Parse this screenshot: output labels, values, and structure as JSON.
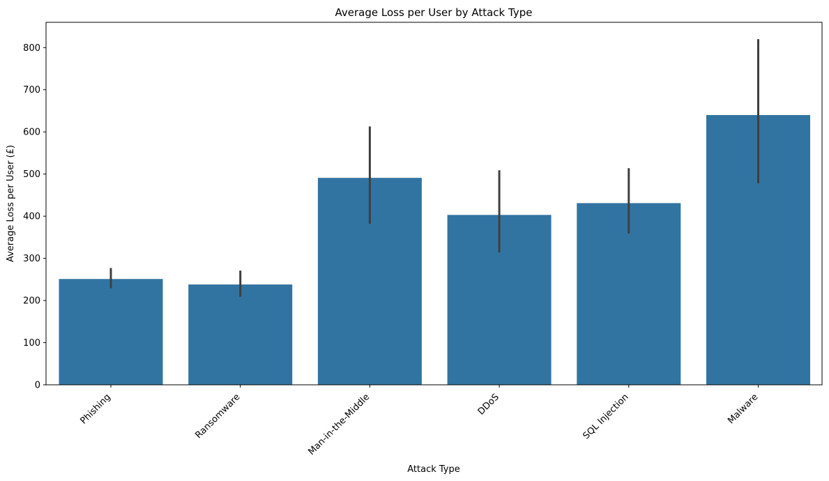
{
  "chart_data": {
    "type": "bar",
    "title": "Average Loss per User by Attack Type",
    "xlabel": "Attack Type",
    "ylabel": "Average Loss per User (£)",
    "categories": [
      "Phishing",
      "Ransomware",
      "Man-in-the-Middle",
      "DDoS",
      "SQL Injection",
      "Malware"
    ],
    "values": [
      251,
      238,
      491,
      403,
      431,
      640
    ],
    "error_low": [
      229,
      209,
      382,
      314,
      359,
      478
    ],
    "error_high": [
      277,
      271,
      613,
      509,
      514,
      820
    ],
    "ylim": [
      0,
      860
    ],
    "yticks": [
      0,
      100,
      200,
      300,
      400,
      500,
      600,
      700,
      800
    ],
    "bar_color": "#3274a1",
    "error_color": "#3f3f3f",
    "grid": false,
    "legend": "none"
  }
}
